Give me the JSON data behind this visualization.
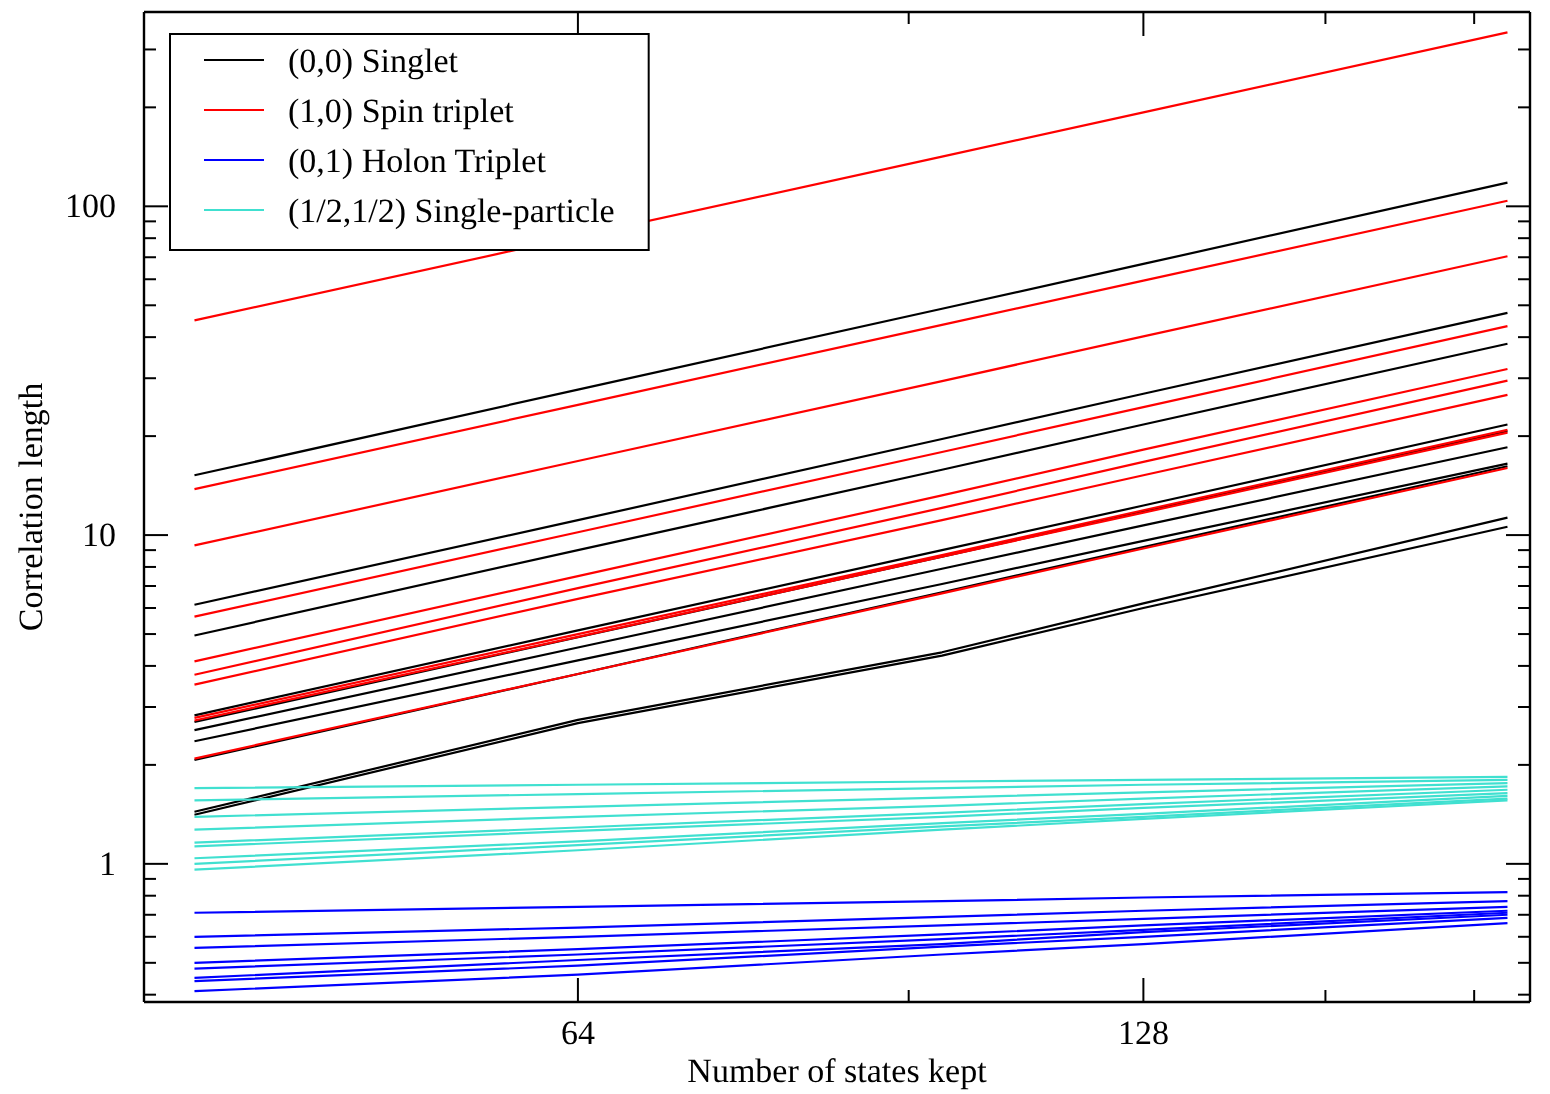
{
  "chart_data": {
    "type": "line",
    "xlabel": "Number of states kept",
    "ylabel": "Correlation length",
    "x": [
      40,
      64,
      100,
      128,
      200
    ],
    "log": "xy",
    "grid": false,
    "legend": "top left",
    "marker": "none",
    "line_style": "solid",
    "xlim": [
      37.6,
      205.6
    ],
    "xticks": [
      64,
      {
        "value": 96,
        "label": null
      },
      128,
      {
        "value": 160,
        "label": null
      },
      {
        "value": 192,
        "label": null
      }
    ],
    "ylim": [
      0.38,
      390
    ],
    "yticks": [
      {
        "value": 0.4,
        "label": null
      },
      {
        "value": 0.5,
        "label": null
      },
      {
        "value": 0.6,
        "label": null
      },
      {
        "value": 0.7,
        "label": null
      },
      {
        "value": 0.8,
        "label": null
      },
      {
        "value": 0.9,
        "label": null
      },
      1,
      {
        "value": 2,
        "label": null
      },
      {
        "value": 3,
        "label": null
      },
      {
        "value": 4,
        "label": null
      },
      {
        "value": 5,
        "label": null
      },
      {
        "value": 6,
        "label": null
      },
      {
        "value": 7,
        "label": null
      },
      {
        "value": 8,
        "label": null
      },
      {
        "value": 9,
        "label": null
      },
      10,
      {
        "value": 20,
        "label": null
      },
      {
        "value": 30,
        "label": null
      },
      {
        "value": 40,
        "label": null
      },
      {
        "value": 50,
        "label": null
      },
      {
        "value": 60,
        "label": null
      },
      {
        "value": 70,
        "label": null
      },
      {
        "value": 80,
        "label": null
      },
      {
        "value": 90,
        "label": null
      },
      100,
      {
        "value": 200,
        "label": null
      },
      {
        "value": 300,
        "label": null
      }
    ],
    "series": [
      {
        "name": "(0,0) Singlet",
        "color": "#000000",
        "values": [
          15.2,
          27.7,
          48.8,
          66.8,
          118
        ]
      },
      {
        "color": "#000000",
        "values": [
          6.14,
          11.1,
          19.6,
          26.9,
          47.4
        ]
      },
      {
        "color": "#000000",
        "values": [
          4.95,
          9.0,
          15.8,
          21.7,
          38.2
        ]
      },
      {
        "color": "#000000",
        "values": [
          2.83,
          5.13,
          9.0,
          12.3,
          21.7
        ]
      },
      {
        "color": "#000000",
        "values": [
          2.7,
          4.89,
          8.6,
          11.8,
          20.7
        ]
      },
      {
        "color": "#000000",
        "values": [
          2.55,
          4.55,
          7.9,
          10.7,
          18.5
        ]
      },
      {
        "color": "#000000",
        "values": [
          2.36,
          4.16,
          7.1,
          9.6,
          16.5
        ]
      },
      {
        "color": "#000000",
        "values": [
          2.07,
          3.78,
          6.7,
          9.2,
          16.2
        ]
      },
      {
        "color": "#000000",
        "values": [
          1.44,
          2.74,
          4.4,
          6.2,
          11.3
        ]
      },
      {
        "color": "#000000",
        "values": [
          1.41,
          2.68,
          4.3,
          6.0,
          10.6
        ]
      },
      {
        "name": "(1,0) Spin triplet",
        "color": "#ff0000",
        "x": [
          40,
          100,
          128,
          200
        ],
        "values": [
          45,
          141.6,
          193,
          338
        ]
      },
      {
        "color": "#ff0000",
        "values": [
          13.8,
          24.9,
          43.6,
          59.4,
          104
        ]
      },
      {
        "color": "#ff0000",
        "values": [
          9.3,
          16.8,
          29.4,
          40.2,
          70.5
        ]
      },
      {
        "color": "#ff0000",
        "values": [
          5.65,
          10.2,
          17.9,
          24.5,
          43.2
        ]
      },
      {
        "color": "#ff0000",
        "values": [
          4.13,
          7.5,
          13.2,
          18.2,
          32.0
        ]
      },
      {
        "color": "#ff0000",
        "values": [
          3.76,
          6.9,
          12.1,
          16.7,
          29.5
        ]
      },
      {
        "color": "#ff0000",
        "values": [
          3.51,
          6.4,
          11.1,
          15.2,
          26.7
        ]
      },
      {
        "color": "#ff0000",
        "values": [
          2.78,
          5.0,
          8.7,
          11.9,
          20.9
        ]
      },
      {
        "color": "#ff0000",
        "values": [
          2.73,
          4.9,
          8.6,
          11.7,
          20.5
        ]
      },
      {
        "color": "#ff0000",
        "values": [
          2.09,
          3.78,
          6.65,
          9.1,
          16.0
        ]
      },
      {
        "name": "(0,1) Holon Triplet",
        "color": "#0000ff",
        "values": [
          0.71,
          0.74,
          0.77,
          0.79,
          0.82
        ]
      },
      {
        "color": "#0000ff",
        "values": [
          0.6,
          0.64,
          0.69,
          0.72,
          0.77
        ]
      },
      {
        "color": "#0000ff",
        "values": [
          0.555,
          0.6,
          0.65,
          0.68,
          0.74
        ]
      },
      {
        "color": "#0000ff",
        "values": [
          0.5,
          0.55,
          0.61,
          0.65,
          0.72
        ]
      },
      {
        "color": "#0000ff",
        "values": [
          0.48,
          0.53,
          0.59,
          0.63,
          0.71
        ]
      },
      {
        "color": "#0000ff",
        "values": [
          0.45,
          0.51,
          0.57,
          0.62,
          0.7
        ]
      },
      {
        "color": "#0000ff",
        "values": [
          0.44,
          0.49,
          0.56,
          0.6,
          0.685
        ]
      },
      {
        "color": "#0000ff",
        "values": [
          0.41,
          0.46,
          0.53,
          0.57,
          0.66
        ]
      },
      {
        "name": "(1/2,1/2) Single-particle",
        "color": "#40e0d0",
        "values": [
          1.7,
          1.74,
          1.78,
          1.8,
          1.84
        ]
      },
      {
        "color": "#40e0d0",
        "values": [
          1.56,
          1.63,
          1.7,
          1.74,
          1.8
        ]
      },
      {
        "color": "#40e0d0",
        "values": [
          1.39,
          1.49,
          1.59,
          1.65,
          1.76
        ]
      },
      {
        "color": "#40e0d0",
        "values": [
          1.27,
          1.39,
          1.5,
          1.58,
          1.72
        ]
      },
      {
        "color": "#40e0d0",
        "values": [
          1.16,
          1.29,
          1.43,
          1.52,
          1.68
        ]
      },
      {
        "color": "#40e0d0",
        "values": [
          1.13,
          1.26,
          1.39,
          1.48,
          1.64
        ]
      },
      {
        "color": "#40e0d0",
        "values": [
          1.04,
          1.17,
          1.33,
          1.42,
          1.61
        ]
      },
      {
        "color": "#40e0d0",
        "values": [
          1.0,
          1.14,
          1.3,
          1.39,
          1.58
        ]
      },
      {
        "color": "#40e0d0",
        "values": [
          0.96,
          1.1,
          1.27,
          1.37,
          1.56
        ]
      }
    ]
  }
}
